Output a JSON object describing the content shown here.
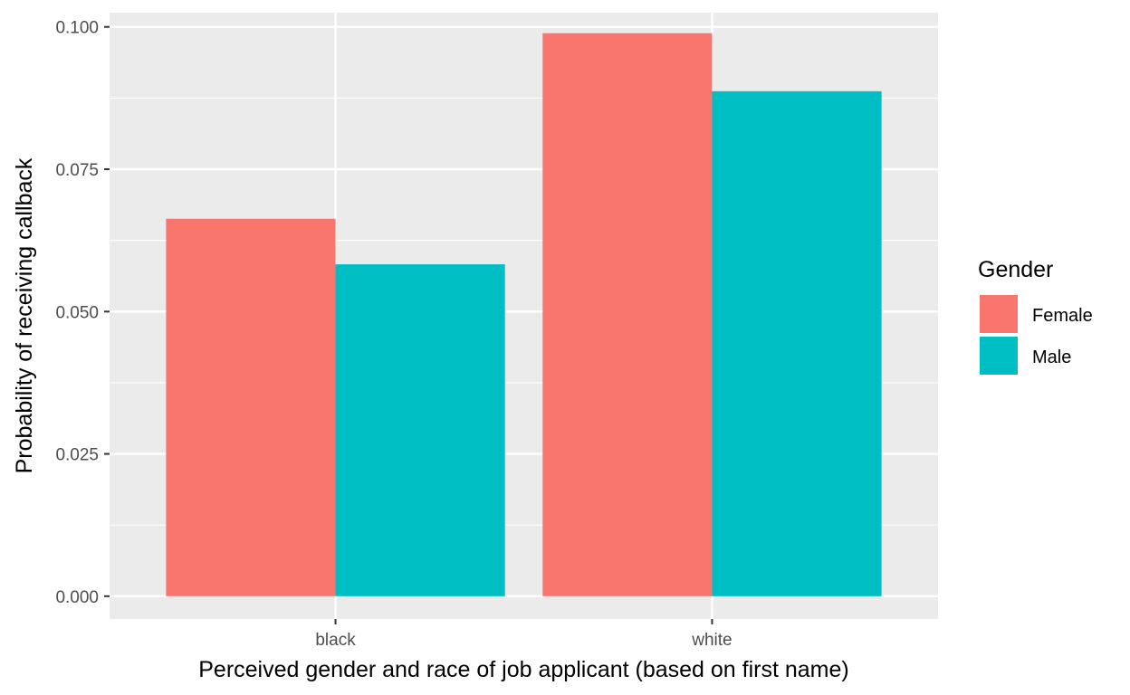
{
  "chart_data": {
    "type": "bar",
    "title": "",
    "xlabel": "Perceived gender and race of job applicant (based on first name)",
    "ylabel": "Probability of receiving callback",
    "categories": [
      "black",
      "white"
    ],
    "series": [
      {
        "name": "Female",
        "values": [
          0.0663,
          0.0989
        ],
        "color": "#F8766D"
      },
      {
        "name": "Male",
        "values": [
          0.0583,
          0.0887
        ],
        "color": "#00BFC4"
      }
    ],
    "ylim": [
      -0.004,
      0.1025
    ],
    "yticks": [
      0.0,
      0.025,
      0.05,
      0.075,
      0.1
    ],
    "ytick_labels": [
      "0.000",
      "0.025",
      "0.050",
      "0.075",
      "0.100"
    ],
    "grid": true,
    "legend": {
      "title": "Gender",
      "position": "right"
    },
    "panel_background": "#EBEBEB",
    "gridline_color": "#FFFFFF"
  }
}
